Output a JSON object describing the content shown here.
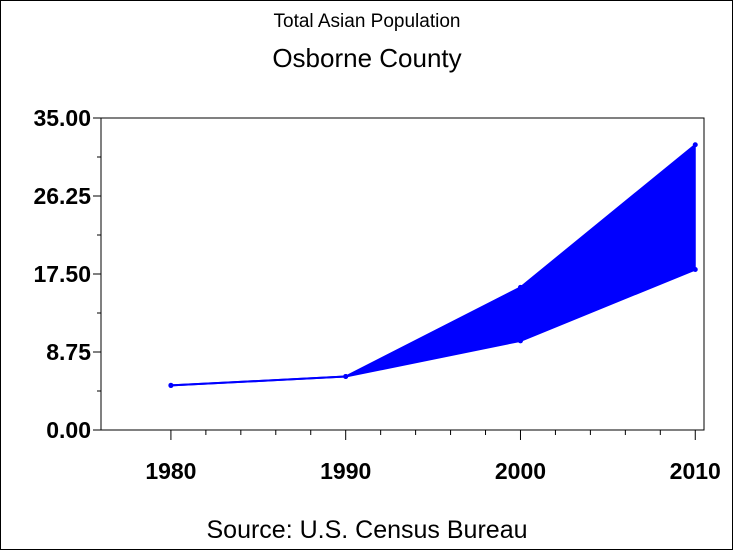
{
  "chart_data": {
    "type": "area",
    "title": "Total Asian Population",
    "subtitle": "Osborne County",
    "footnote": "Source: U.S. Census Bureau",
    "xlabel": "",
    "ylabel": "",
    "x": [
      1980,
      1990,
      2000,
      2010
    ],
    "x_tick_labels": [
      "1980",
      "1990",
      "2000",
      "2010"
    ],
    "xlim": [
      1976,
      2010.5
    ],
    "ylim": [
      0,
      35
    ],
    "y_ticks": [
      0,
      8.75,
      17.5,
      26.25,
      35
    ],
    "y_tick_labels": [
      "0.00",
      "8.75",
      "17.50",
      "26.25",
      "35.00"
    ],
    "y_minor_ticks": [
      4.375,
      13.125,
      21.875,
      30.625
    ],
    "series": [
      {
        "values": [
          5,
          6,
          16,
          32
        ]
      },
      {
        "values": [
          5,
          6,
          10,
          18
        ]
      }
    ],
    "colors": {
      "fill": "#0000ff",
      "line": "#0000ff"
    },
    "grid": false,
    "legend": "none"
  }
}
